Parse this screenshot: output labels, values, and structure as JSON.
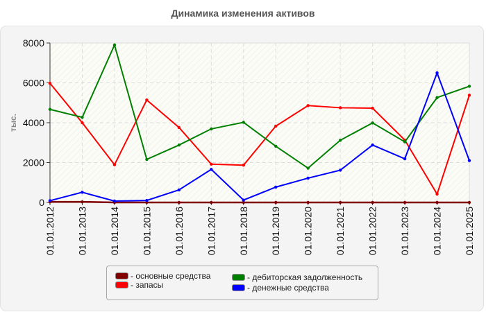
{
  "title": "Динамика изменения активов",
  "colors": {
    "panel_bg": "#f4f4f4",
    "plot_bg": "#fcfcf7",
    "grid": "#dddddd",
    "axis": "#333333"
  },
  "chart_data": {
    "type": "line",
    "title": "Динамика изменения активов",
    "xlabel": "",
    "ylabel": "тыс.",
    "ylim": [
      0,
      8000
    ],
    "yticks": [
      0,
      2000,
      4000,
      6000,
      8000
    ],
    "grid": true,
    "legend_position": "bottom",
    "categories": [
      "01.01.2012",
      "01.01.2013",
      "01.01.2014",
      "01.01.2015",
      "01.01.2016",
      "01.01.2017",
      "01.01.2018",
      "01.01.2019",
      "01.01.2020",
      "01.01.2021",
      "01.01.2022",
      "01.01.2023",
      "01.01.2024",
      "01.01.2025"
    ],
    "series": [
      {
        "name": "основные средства",
        "color": "#800000",
        "values": [
          30,
          30,
          0,
          0,
          0,
          0,
          0,
          0,
          0,
          0,
          0,
          0,
          0,
          0
        ]
      },
      {
        "name": "запасы",
        "color": "#ff0000",
        "values": [
          5980,
          4000,
          1890,
          5140,
          3760,
          1920,
          1870,
          3830,
          4860,
          4750,
          4730,
          3130,
          420,
          5380
        ]
      },
      {
        "name": "дебиторская задолженность",
        "color": "#008000",
        "values": [
          4670,
          4270,
          7900,
          2160,
          2880,
          3690,
          4020,
          2820,
          1720,
          3120,
          3990,
          3040,
          5260,
          5830
        ]
      },
      {
        "name": "денежные средства",
        "color": "#0000ff",
        "values": [
          90,
          510,
          70,
          100,
          630,
          1660,
          120,
          770,
          1220,
          1620,
          2880,
          2190,
          6500,
          2100
        ]
      }
    ]
  },
  "legend": {
    "items": [
      {
        "label": "- основные средства",
        "color": "#800000"
      },
      {
        "label": "- запасы",
        "color": "#ff0000"
      },
      {
        "label": "- дебиторская задолженность",
        "color": "#008000"
      },
      {
        "label": "- денежные средства",
        "color": "#0000ff"
      }
    ]
  }
}
